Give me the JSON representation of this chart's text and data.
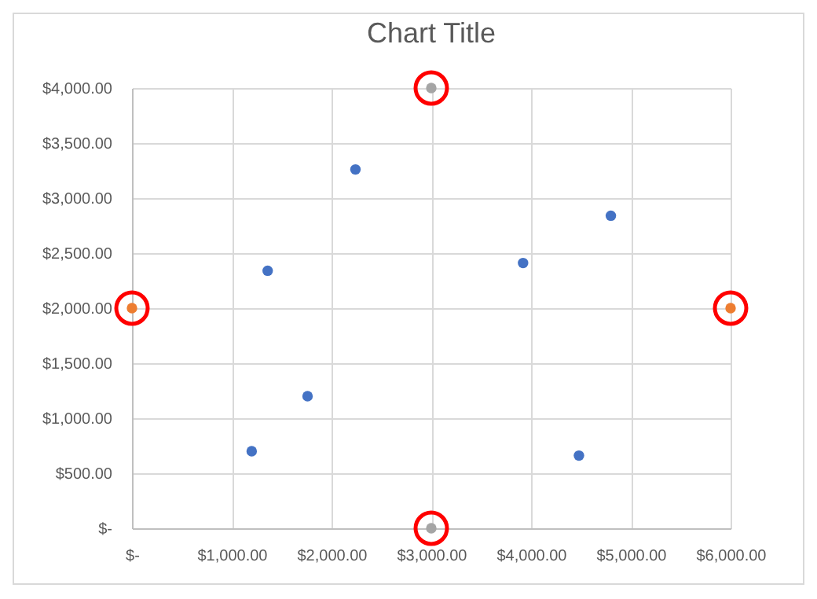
{
  "chart_data": {
    "type": "scatter",
    "title": "Chart Title",
    "series": [
      {
        "color": "#4472c4",
        "x": [
          1200,
          1760,
          1360,
          2240,
          3920,
          4800,
          4480
        ],
        "values": [
          700,
          1200,
          2340,
          3260,
          2410,
          2840,
          660
        ]
      },
      {
        "color": "#ed7d31",
        "x": [
          0,
          6000
        ],
        "values": [
          2000,
          2000
        ]
      },
      {
        "color": "#a5a5a5",
        "x": [
          3000,
          3000
        ],
        "values": [
          4000,
          0
        ]
      }
    ],
    "xlim": [
      0,
      6000
    ],
    "ylim": [
      0,
      4000
    ],
    "xticks": [
      {
        "value": 0,
        "label": "$-"
      },
      {
        "value": 1000,
        "label": "$1,000.00"
      },
      {
        "value": 2000,
        "label": "$2,000.00"
      },
      {
        "value": 3000,
        "label": "$3,000.00"
      },
      {
        "value": 4000,
        "label": "$4,000.00"
      },
      {
        "value": 5000,
        "label": "$5,000.00"
      },
      {
        "value": 6000,
        "label": "$6,000.00"
      }
    ],
    "yticks": [
      {
        "value": 0,
        "label": "$-"
      },
      {
        "value": 500,
        "label": "$500.00"
      },
      {
        "value": 1000,
        "label": "$1,000.00"
      },
      {
        "value": 1500,
        "label": "$1,500.00"
      },
      {
        "value": 2000,
        "label": "$2,000.00"
      },
      {
        "value": 2500,
        "label": "$2,500.00"
      },
      {
        "value": 3000,
        "label": "$3,000.00"
      },
      {
        "value": 3500,
        "label": "$3,500.00"
      },
      {
        "value": 4000,
        "label": "$4,000.00"
      }
    ],
    "grid": true,
    "marker": "circle",
    "legend": false
  }
}
